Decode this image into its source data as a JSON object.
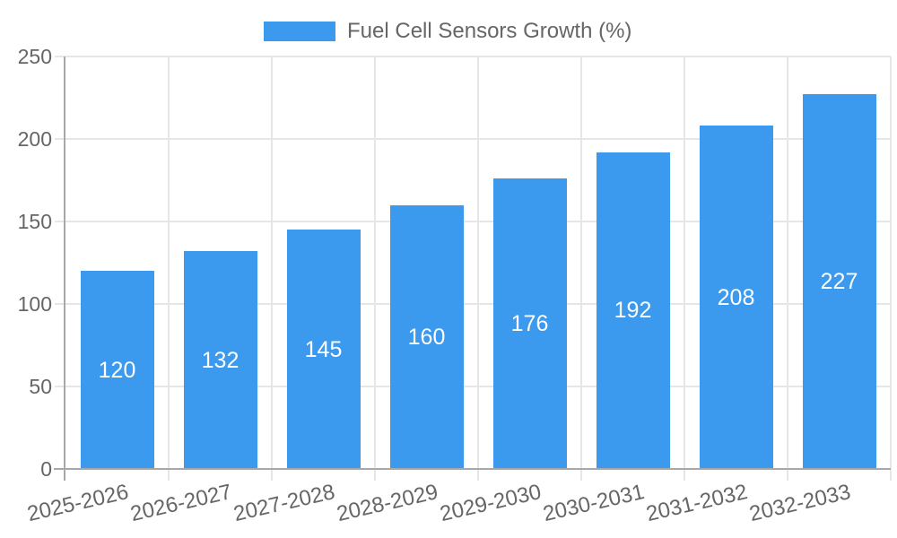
{
  "colors": {
    "bar": "#3B99EE",
    "grid": "#e6e6e6",
    "axis": "#a8a8a8",
    "tick_text": "#666666",
    "value_label": "#ffffff",
    "background": "#ffffff"
  },
  "legend": {
    "label": "Fuel Cell Sensors Growth (%)"
  },
  "chart_data": {
    "type": "bar",
    "title": "Fuel Cell Sensors Growth (%)",
    "categories": [
      "2025-2026",
      "2026-2027",
      "2027-2028",
      "2028-2029",
      "2029-2030",
      "2030-2031",
      "2031-2032",
      "2032-2033"
    ],
    "series": [
      {
        "name": "Fuel Cell Sensors Growth (%)",
        "values": [
          120,
          132,
          145,
          160,
          176,
          192,
          208,
          227
        ]
      }
    ],
    "xlabel": "",
    "ylabel": "",
    "ylim": [
      0,
      250
    ],
    "y_ticks": [
      0,
      50,
      100,
      150,
      200,
      250
    ],
    "grid": true,
    "legend_position": "top",
    "x_tick_rotation_deg": -13,
    "value_labels_shown": true
  }
}
